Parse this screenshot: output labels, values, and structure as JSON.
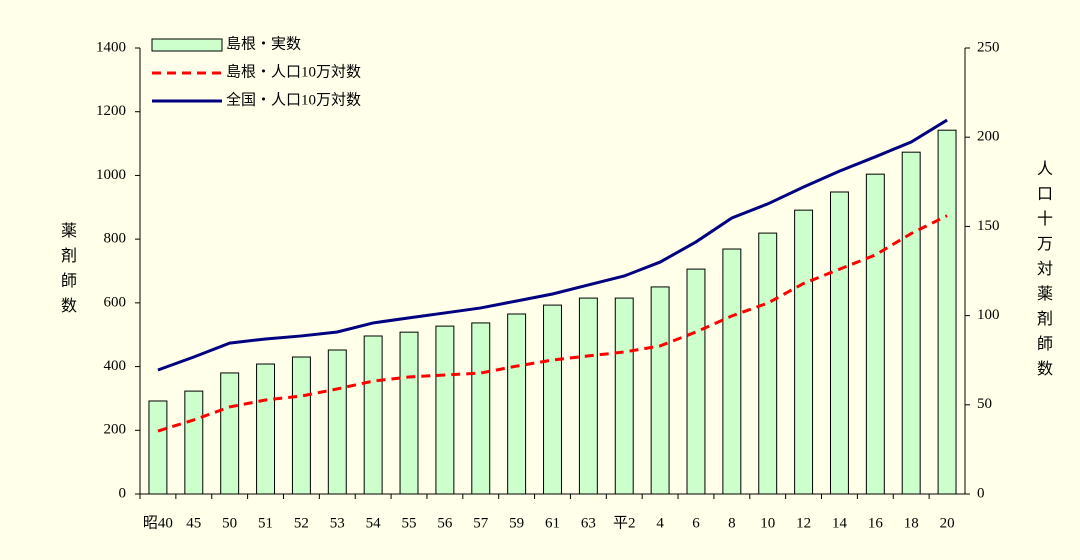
{
  "chart_data": {
    "type": "bar_line",
    "y_label": "薬剤師数",
    "y2_label": "人口十万対薬剤師数",
    "categories": [
      "昭40",
      "45",
      "50",
      "51",
      "52",
      "53",
      "54",
      "55",
      "56",
      "57",
      "59",
      "61",
      "63",
      "平2",
      "4",
      "6",
      "8",
      "10",
      "12",
      "14",
      "16",
      "18",
      "20"
    ],
    "series": [
      {
        "name": "島根・実数",
        "type": "bar",
        "color": "#ccffcc",
        "values": [
          292,
          323,
          380,
          408,
          430,
          452,
          496,
          508,
          527,
          537,
          565,
          593,
          615,
          615,
          650,
          706,
          769,
          819,
          891,
          948,
          1004,
          1073,
          1142
        ]
      },
      {
        "name": "島根・人口10万対数",
        "type": "line",
        "style": "dashed",
        "axis": "y2",
        "color": "#ff0000",
        "values": [
          35.3,
          41.5,
          48.8,
          52.7,
          54.9,
          58.9,
          63.3,
          65.6,
          66.7,
          67.8,
          71.7,
          75.1,
          77.4,
          79.6,
          83.0,
          90.8,
          99.8,
          107,
          118,
          126,
          134,
          146,
          156
        ]
      },
      {
        "name": "全国・人口10万対数",
        "type": "line",
        "style": "solid",
        "axis": "y2",
        "color": "#000080",
        "values": [
          69.5,
          76.8,
          84.6,
          86.9,
          88.6,
          90.8,
          95.9,
          98.7,
          101.5,
          104.3,
          108.2,
          112.1,
          117.2,
          122.2,
          130,
          141.3,
          154.7,
          162.6,
          172.1,
          181,
          189,
          197.3,
          209.6
        ]
      }
    ],
    "ylim": [
      0,
      1400
    ],
    "yticks": [
      0,
      200,
      400,
      600,
      800,
      1000,
      1200,
      1400
    ],
    "y2lim": [
      0,
      250
    ],
    "y2ticks": [
      0,
      50,
      100,
      150,
      200,
      250
    ],
    "legend": "top-left"
  }
}
